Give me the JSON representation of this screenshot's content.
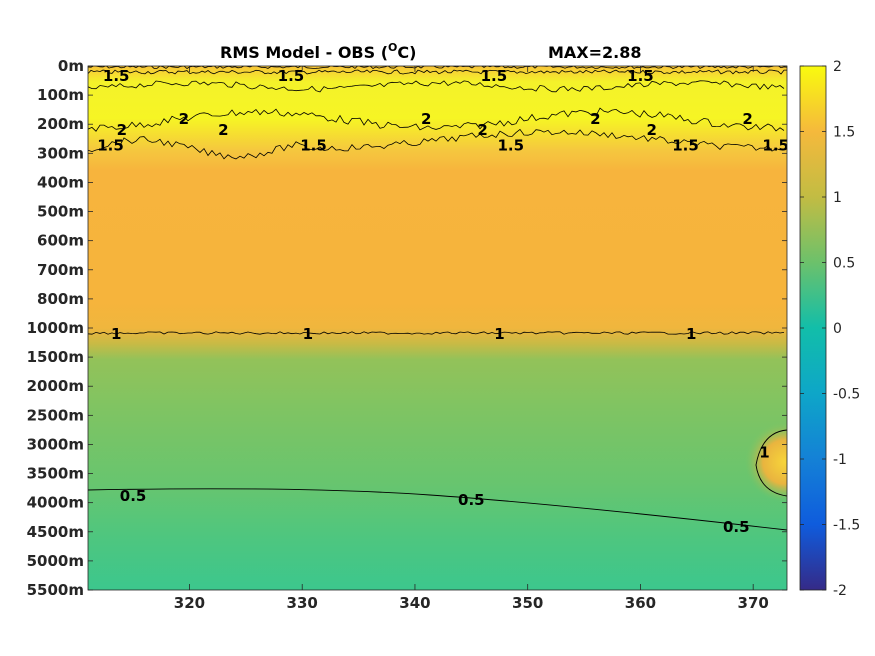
{
  "chart_data": {
    "type": "heatmap",
    "title_left": "RMS Model - OBS (",
    "title_unit_sup": "O",
    "title_unit_end": "C)",
    "title_right": "MAX=2.88",
    "xlim": [
      311,
      373
    ],
    "x_ticks": [
      320,
      330,
      340,
      350,
      360,
      370
    ],
    "x_tick_labels": [
      "320",
      "330",
      "340",
      "350",
      "360",
      "370"
    ],
    "y_tick_labels": [
      "0m",
      "100m",
      "200m",
      "300m",
      "400m",
      "500m",
      "600m",
      "700m",
      "800m",
      "1000m",
      "1500m",
      "2000m",
      "2500m",
      "3000m",
      "3500m",
      "4000m",
      "4500m",
      "5000m",
      "5500m"
    ],
    "colorbar": {
      "range": [
        -2,
        2
      ],
      "ticks": [
        2,
        1.5,
        1,
        0.5,
        0,
        -0.5,
        -1,
        -1.5,
        -2
      ],
      "tick_labels": [
        "2",
        "1.5",
        "1",
        "0.5",
        "0",
        "-0.5",
        "-1",
        "-1.5",
        "-2"
      ],
      "colormap": "parula",
      "colors": [
        "#352a87",
        "#0268e1",
        "#108ed2",
        "#0fb1b2",
        "#1bc09d",
        "#8dc05a",
        "#d6ba38",
        "#fbb739",
        "#f9fb0e"
      ]
    },
    "depth_profile_rms": [
      {
        "depth": "0m",
        "value": 1.5
      },
      {
        "depth": "100m",
        "value": 2.2
      },
      {
        "depth": "200m",
        "value": 1.8
      },
      {
        "depth": "300m",
        "value": 1.35
      },
      {
        "depth": "400m",
        "value": 1.3
      },
      {
        "depth": "500m",
        "value": 1.3
      },
      {
        "depth": "600m",
        "value": 1.3
      },
      {
        "depth": "700m",
        "value": 1.3
      },
      {
        "depth": "800m",
        "value": 1.3
      },
      {
        "depth": "1000m",
        "value": 1.0
      },
      {
        "depth": "1500m",
        "value": 0.8
      },
      {
        "depth": "2000m",
        "value": 0.75
      },
      {
        "depth": "2500m",
        "value": 0.7
      },
      {
        "depth": "3000m",
        "value": 0.65
      },
      {
        "depth": "3500m",
        "value": 0.6
      },
      {
        "depth": "4000m",
        "value": 0.5
      },
      {
        "depth": "4500m",
        "value": 0.45
      },
      {
        "depth": "5000m",
        "value": 0.4
      },
      {
        "depth": "5500m",
        "value": 0.35
      }
    ],
    "contour_labels": [
      {
        "text": "1.5",
        "x": 313.5,
        "depth": "0m"
      },
      {
        "text": "1.5",
        "x": 329,
        "depth": "0m"
      },
      {
        "text": "1.5",
        "x": 347,
        "depth": "0m"
      },
      {
        "text": "1.5",
        "x": 360,
        "depth": "0m"
      },
      {
        "text": "2",
        "x": 319.5,
        "depth": "100m"
      },
      {
        "text": "2",
        "x": 341,
        "depth": "100m"
      },
      {
        "text": "2",
        "x": 356,
        "depth": "100m"
      },
      {
        "text": "2",
        "x": 369.5,
        "depth": "100m"
      },
      {
        "text": "2",
        "x": 323,
        "depth": "200m"
      },
      {
        "text": "2",
        "x": 346,
        "depth": "200m"
      },
      {
        "text": "2",
        "x": 361,
        "depth": "200m"
      },
      {
        "text": "2",
        "x": 314,
        "depth": "200m"
      },
      {
        "text": "1.5",
        "x": 313,
        "depth": "300m"
      },
      {
        "text": "1.5",
        "x": 331,
        "depth": "300m"
      },
      {
        "text": "1.5",
        "x": 348.5,
        "depth": "300m"
      },
      {
        "text": "1.5",
        "x": 364,
        "depth": "300m"
      },
      {
        "text": "1.5",
        "x": 372,
        "depth": "300m"
      },
      {
        "text": "1",
        "x": 313.5,
        "depth": "1000m"
      },
      {
        "text": "1",
        "x": 330.5,
        "depth": "1000m"
      },
      {
        "text": "1",
        "x": 347.5,
        "depth": "1000m"
      },
      {
        "text": "1",
        "x": 364.5,
        "depth": "1000m"
      },
      {
        "text": "1",
        "x": 371,
        "depth": "3000m"
      },
      {
        "text": "0.5",
        "x": 315,
        "depth": "4000m"
      },
      {
        "text": "0.5",
        "x": 345,
        "depth": "4000m"
      },
      {
        "text": "0.5",
        "x": 368.5,
        "depth": "4000m"
      }
    ]
  }
}
